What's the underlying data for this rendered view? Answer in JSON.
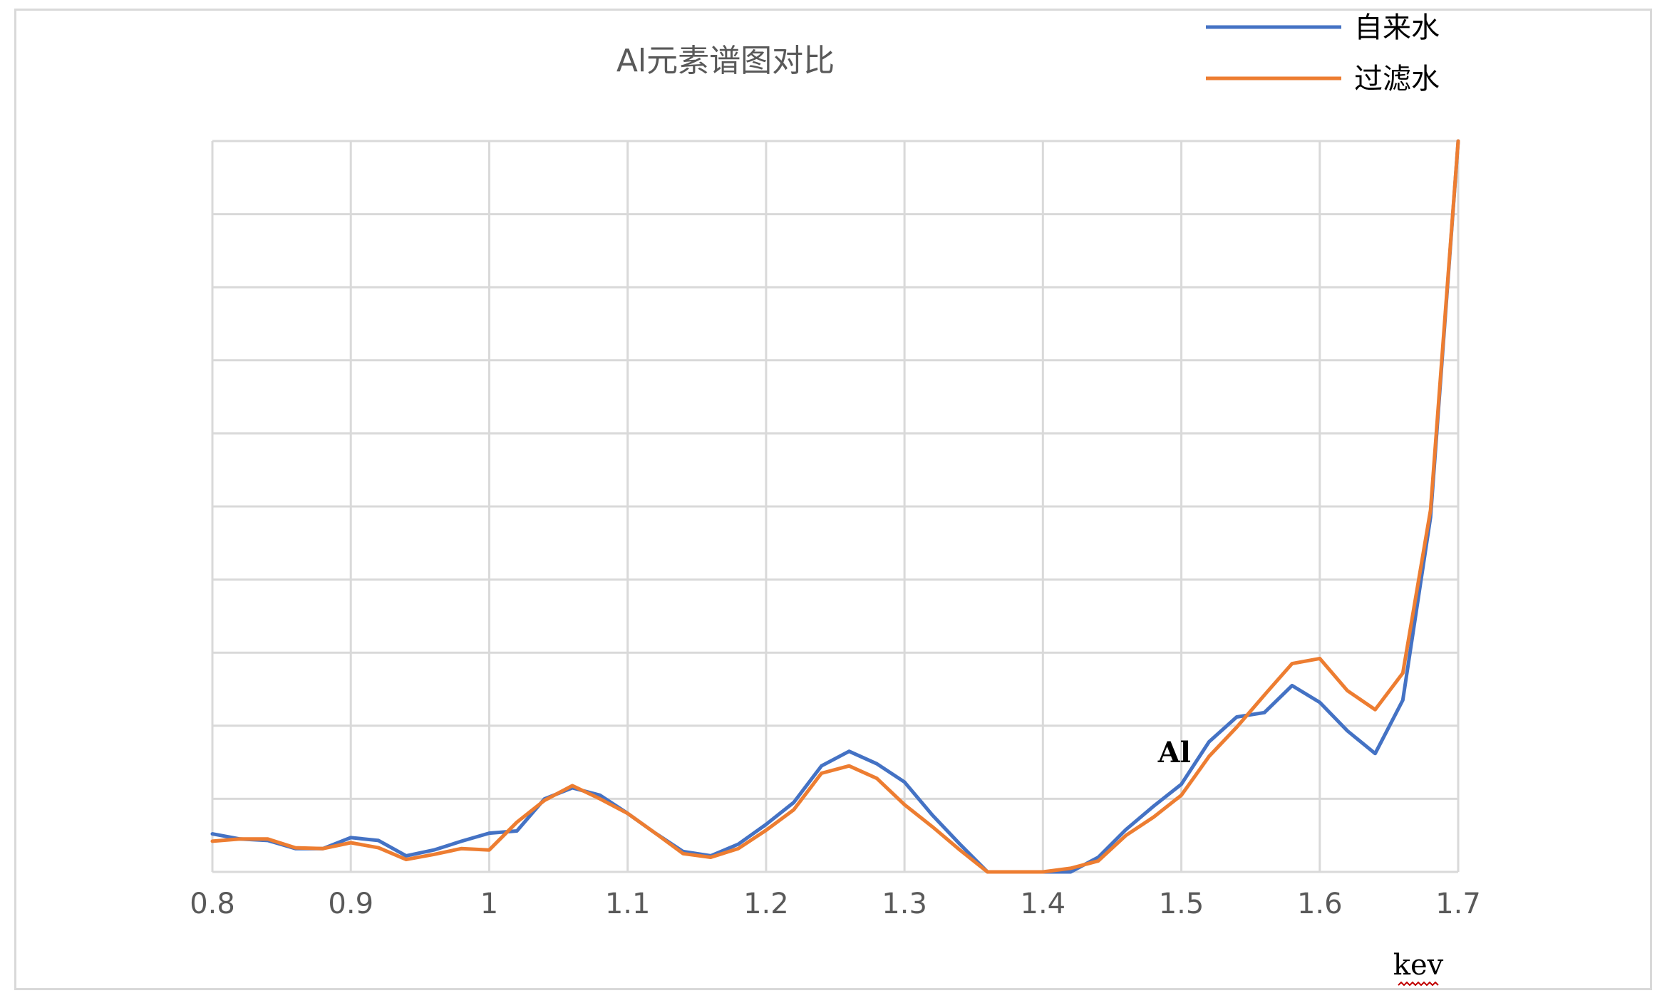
{
  "chart_data": {
    "type": "line",
    "title": "Al元素谱图对比",
    "xlabel": "kev",
    "ylabel": "",
    "xlim": [
      0.8,
      1.7
    ],
    "ylim": [
      0,
      10
    ],
    "xticks": [
      0.8,
      0.9,
      1,
      1.1,
      1.2,
      1.3,
      1.4,
      1.5,
      1.6,
      1.7
    ],
    "xtick_labels": [
      "0.8",
      "0.9",
      "1",
      "1.1",
      "1.2",
      "1.3",
      "1.4",
      "1.5",
      "1.6",
      "1.7"
    ],
    "y_gridlines": 10,
    "grid": true,
    "legend_position": "top-right",
    "annotations": [
      {
        "text": "Al",
        "x": 1.495,
        "y": 1.5
      }
    ],
    "x": [
      0.8,
      0.82,
      0.84,
      0.86,
      0.88,
      0.9,
      0.92,
      0.94,
      0.96,
      0.98,
      1.0,
      1.02,
      1.04,
      1.06,
      1.08,
      1.1,
      1.12,
      1.14,
      1.16,
      1.18,
      1.2,
      1.22,
      1.24,
      1.26,
      1.28,
      1.3,
      1.32,
      1.34,
      1.36,
      1.38,
      1.4,
      1.42,
      1.44,
      1.46,
      1.48,
      1.5,
      1.52,
      1.54,
      1.56,
      1.58,
      1.6,
      1.62,
      1.64,
      1.66,
      1.68,
      1.7
    ],
    "series": [
      {
        "name": "自来水",
        "color": "#4472c4",
        "values": [
          0.52,
          0.45,
          0.43,
          0.32,
          0.32,
          0.47,
          0.43,
          0.22,
          0.3,
          0.42,
          0.53,
          0.56,
          1.0,
          1.15,
          1.05,
          0.8,
          0.53,
          0.28,
          0.22,
          0.38,
          0.65,
          0.95,
          1.45,
          1.65,
          1.48,
          1.23,
          0.78,
          0.38,
          0.0,
          0.0,
          0.0,
          0.0,
          0.2,
          0.58,
          0.9,
          1.2,
          1.78,
          2.12,
          2.18,
          2.55,
          2.32,
          1.93,
          1.62,
          2.35,
          4.85,
          10.0
        ]
      },
      {
        "name": "过滤水",
        "color": "#ed7d31",
        "values": [
          0.42,
          0.45,
          0.45,
          0.33,
          0.32,
          0.4,
          0.33,
          0.17,
          0.24,
          0.32,
          0.3,
          0.68,
          0.98,
          1.18,
          1.0,
          0.8,
          0.53,
          0.25,
          0.2,
          0.32,
          0.57,
          0.85,
          1.35,
          1.45,
          1.28,
          0.92,
          0.62,
          0.3,
          0.0,
          0.0,
          0.0,
          0.05,
          0.15,
          0.5,
          0.75,
          1.05,
          1.58,
          1.98,
          2.42,
          2.85,
          2.92,
          2.48,
          2.22,
          2.72,
          4.95,
          10.0
        ]
      }
    ]
  }
}
